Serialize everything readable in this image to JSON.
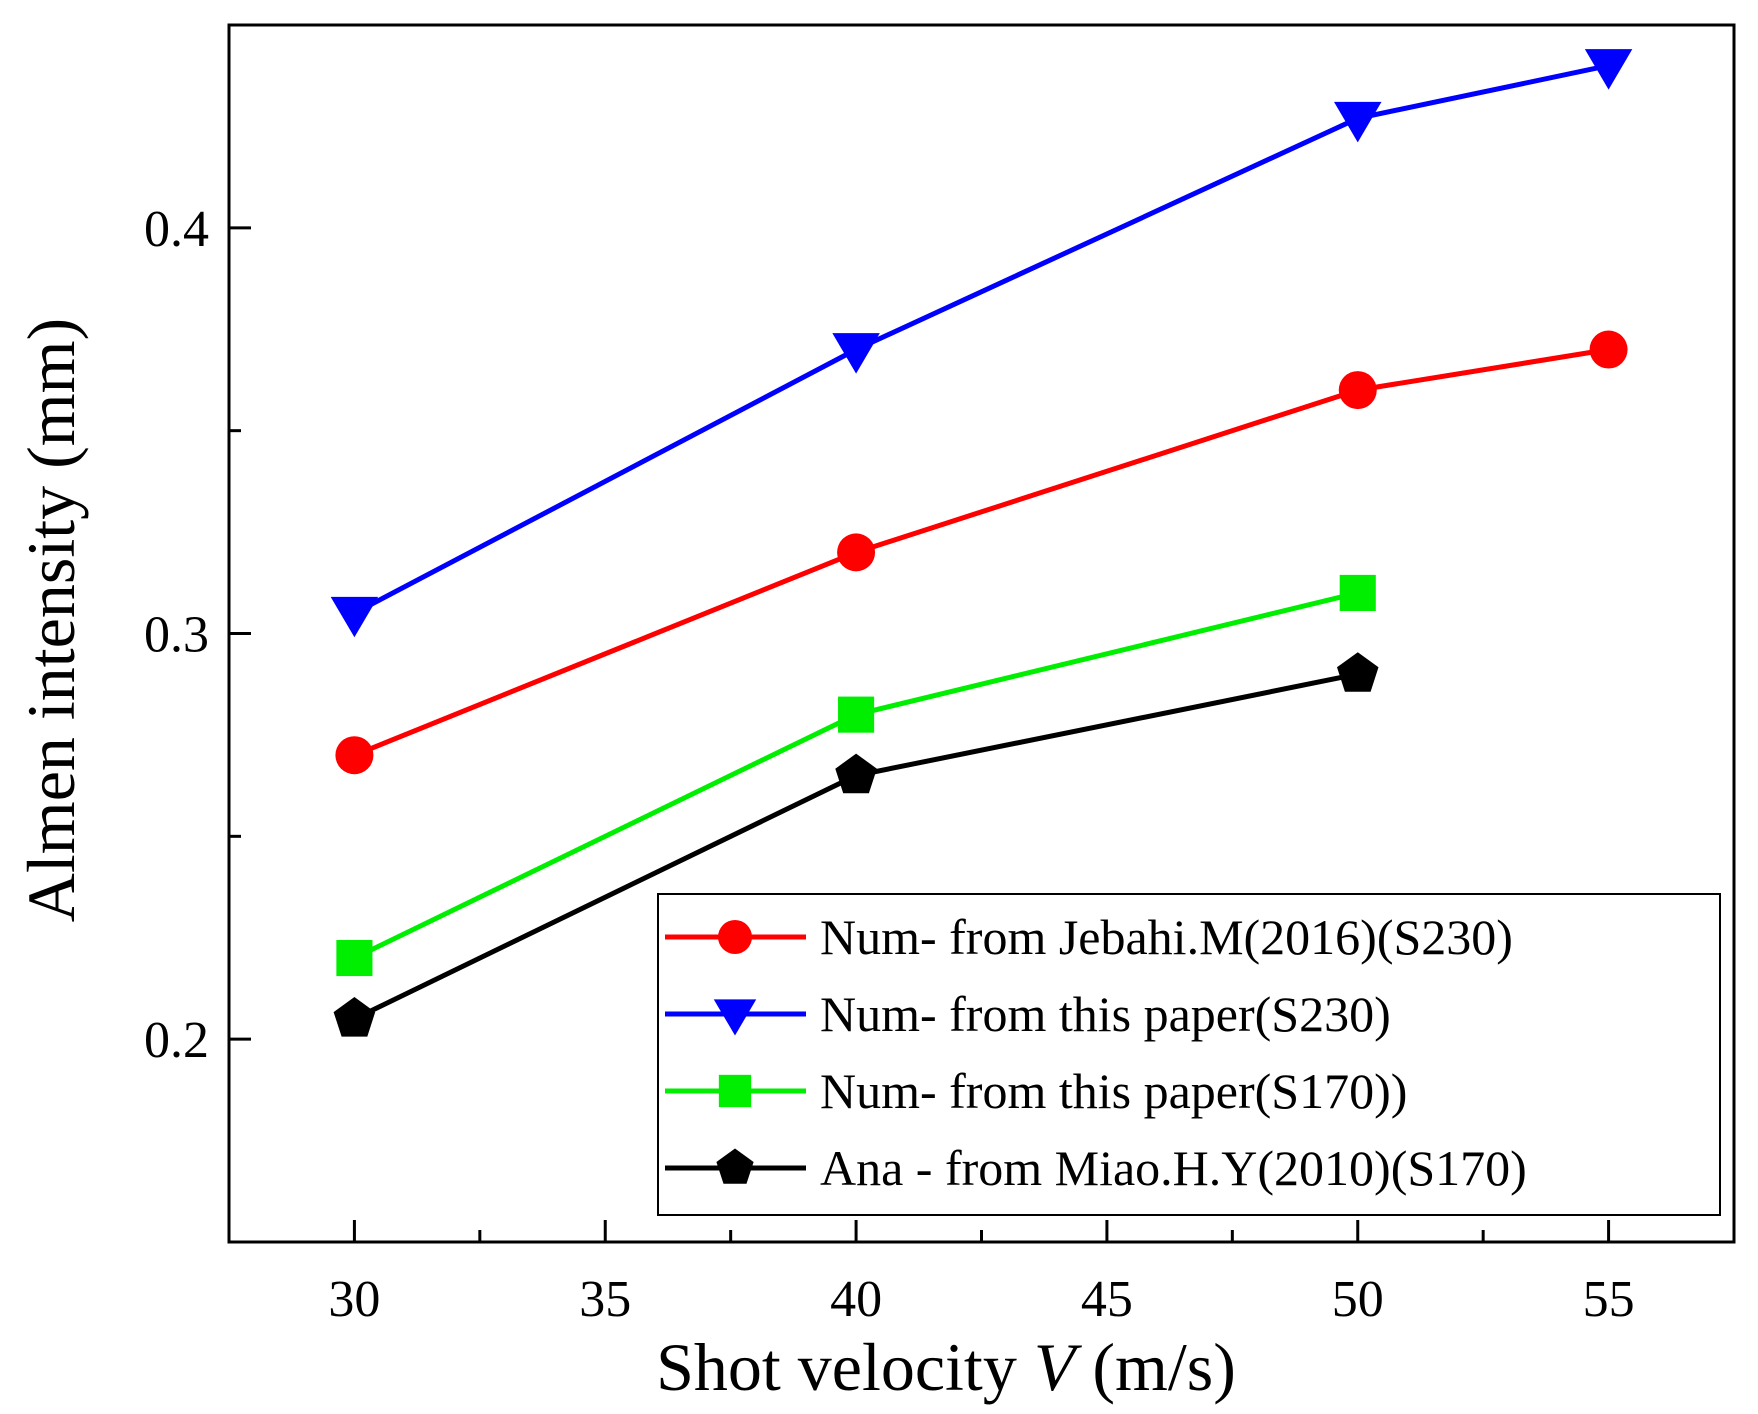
{
  "chart_data": {
    "type": "line",
    "title": "",
    "xlabel_parts": [
      "Shot velocity ",
      "V",
      " (m/s)"
    ],
    "ylabel": "Almen intensity (mm)",
    "xlim": [
      27.5,
      57.5
    ],
    "ylim": [
      0.15,
      0.45
    ],
    "x_major_ticks": [
      30,
      35,
      40,
      45,
      50,
      55
    ],
    "x_minor_ticks": [
      32.5,
      37.5,
      42.5,
      47.5,
      52.5
    ],
    "x_tick_labels": [
      "30",
      "35",
      "40",
      "45",
      "50",
      "55"
    ],
    "y_major_ticks": [
      0.2,
      0.3,
      0.4
    ],
    "y_minor_ticks": [
      0.25,
      0.35
    ],
    "y_tick_labels": [
      "0.2",
      "0.3",
      "0.4"
    ],
    "grid": false,
    "legend_position": "bottom-right",
    "series": [
      {
        "name": "Num- from Jebahi.M(2016)(S230)",
        "color": "#ff0000",
        "marker": "circle",
        "x": [
          30,
          40,
          50,
          55
        ],
        "values": [
          0.27,
          0.32,
          0.36,
          0.37
        ]
      },
      {
        "name": "Num- from this paper(S230)",
        "color": "#0000ff",
        "marker": "triangle-down",
        "x": [
          30,
          40,
          50,
          55
        ],
        "values": [
          0.305,
          0.37,
          0.427,
          0.44
        ]
      },
      {
        "name": "Num- from this paper(S170))",
        "color": "#00ee00",
        "marker": "square",
        "x": [
          30,
          40,
          50
        ],
        "values": [
          0.22,
          0.28,
          0.31
        ]
      },
      {
        "name": "Ana - from Miao.H.Y(2010)(S170)",
        "color": "#000000",
        "marker": "pentagon",
        "x": [
          30,
          40,
          50
        ],
        "values": [
          0.205,
          0.265,
          0.29
        ]
      }
    ]
  }
}
